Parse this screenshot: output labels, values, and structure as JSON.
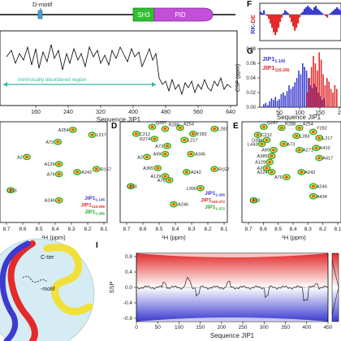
{
  "panel_letters": {
    "F": "F",
    "G": "G",
    "D": "D",
    "E": "E",
    "I": "I"
  },
  "domain_bar": {
    "motif_label": "D-motif",
    "domain_sh3": "SH3",
    "domain_pid": "PID",
    "colors": {
      "line": "#000000",
      "sh3": "#2fbf2f",
      "pid": "#c24fd8",
      "motif": "#4a9fd8"
    }
  },
  "disorder_plot": {
    "region_label": "Intrinsically disordered region",
    "xlabel": "Sequence JIP1",
    "xticks": [
      "160",
      "240",
      "320",
      "400",
      "480",
      "560",
      "640"
    ],
    "arrow_color": "#3ab5a6"
  },
  "panel_f": {
    "ylabel": "RK-DE",
    "colors": {
      "positive": "#3b3bd0",
      "negative": "#e32b2b"
    }
  },
  "panel_g": {
    "ylabel": "CSP (ppm)",
    "yticks": [
      "0.00",
      "0.02",
      "0.04",
      "0.06",
      "0.08"
    ],
    "xticks": [
      "50",
      "100",
      "150",
      "2"
    ],
    "xlabel": "Sequence JIP1",
    "legend_1": "JIP1",
    "legend_1_sub": "1-145",
    "legend_2": "JIP1",
    "legend_2_sub": "116-266",
    "colors": {
      "jip1_1_145": "#3b3bd0",
      "jip1_116_266": "#e32b2b"
    }
  },
  "spectrum_c": {
    "labels": [
      "A254",
      "L217",
      "A73",
      "A2",
      "A129",
      "A242",
      "R157",
      "A76",
      "L213",
      "A246"
    ],
    "xticks": [
      "8.7",
      "8.6",
      "8.5",
      "8.4",
      "8.3",
      "8.2",
      "8.1"
    ],
    "xlabel": "¹H (ppm)",
    "legend": [
      {
        "text": "JIP1",
        "sub": "1-145",
        "color": "#3b3bd0"
      },
      {
        "text": "JIP1",
        "sub": "116-266",
        "color": "#e32b2b"
      },
      {
        "text": "JIP1",
        "sub": "1-266",
        "color": "#2aa82a"
      }
    ]
  },
  "spectrum_d": {
    "labels": [
      "Q287",
      "R288",
      "A254",
      "C212",
      "Y282",
      "L283",
      "R274",
      "L217",
      "A73",
      "A99",
      "A345",
      "A2",
      "A365",
      "A129",
      "A242",
      "R157",
      "A76",
      "L300",
      "L213",
      "A246"
    ],
    "xticks": [
      "8.7",
      "8.6",
      "8.5",
      "8.4",
      "8.3",
      "8.2",
      "8.1"
    ],
    "xlabel": "¹H (ppm)",
    "legend": [
      {
        "text": "JIP1",
        "sub": "1-266",
        "color": "#3b3bd0"
      },
      {
        "text": "JIP1",
        "sub": "245-372",
        "color": "#e32b2b"
      },
      {
        "text": "JIP1",
        "sub": "1-372",
        "color": "#2aa82a"
      }
    ]
  },
  "spectrum_e": {
    "labels": [
      "Q287",
      "R288",
      "A254",
      "Y282",
      "C212",
      "D386",
      "L283",
      "L217",
      "L443",
      "A73",
      "A410",
      "A99",
      "A271",
      "A385",
      "A129",
      "A417",
      "A2",
      "A242",
      "A224",
      "A76",
      "A246",
      "A434",
      "L213"
    ],
    "xticks": [
      "8.7",
      "8.6",
      "8.5",
      "8.4",
      "8.3",
      "8.2",
      "8.1"
    ],
    "xlabel": "¹H (ppm)"
  },
  "schematic": {
    "cter_label": "C-ter",
    "motif_label": "-motif",
    "colors": {
      "red": "#e32b2b",
      "blue": "#3b3bd0",
      "yellow": "#f2e03a",
      "bg": "#d5ecf5"
    }
  },
  "ssp_plot": {
    "ylabel": "SSP",
    "yticks": [
      "0.8",
      "0.4",
      "0.0",
      "-0.4",
      "-0.8"
    ],
    "xticks": [
      "0",
      "50",
      "100",
      "150",
      "200",
      "250",
      "300",
      "350",
      "400",
      "450"
    ],
    "xlabel": "Sequence JIP1",
    "colors": {
      "top": "#e32b2b",
      "bottom": "#3b3bd0"
    }
  }
}
